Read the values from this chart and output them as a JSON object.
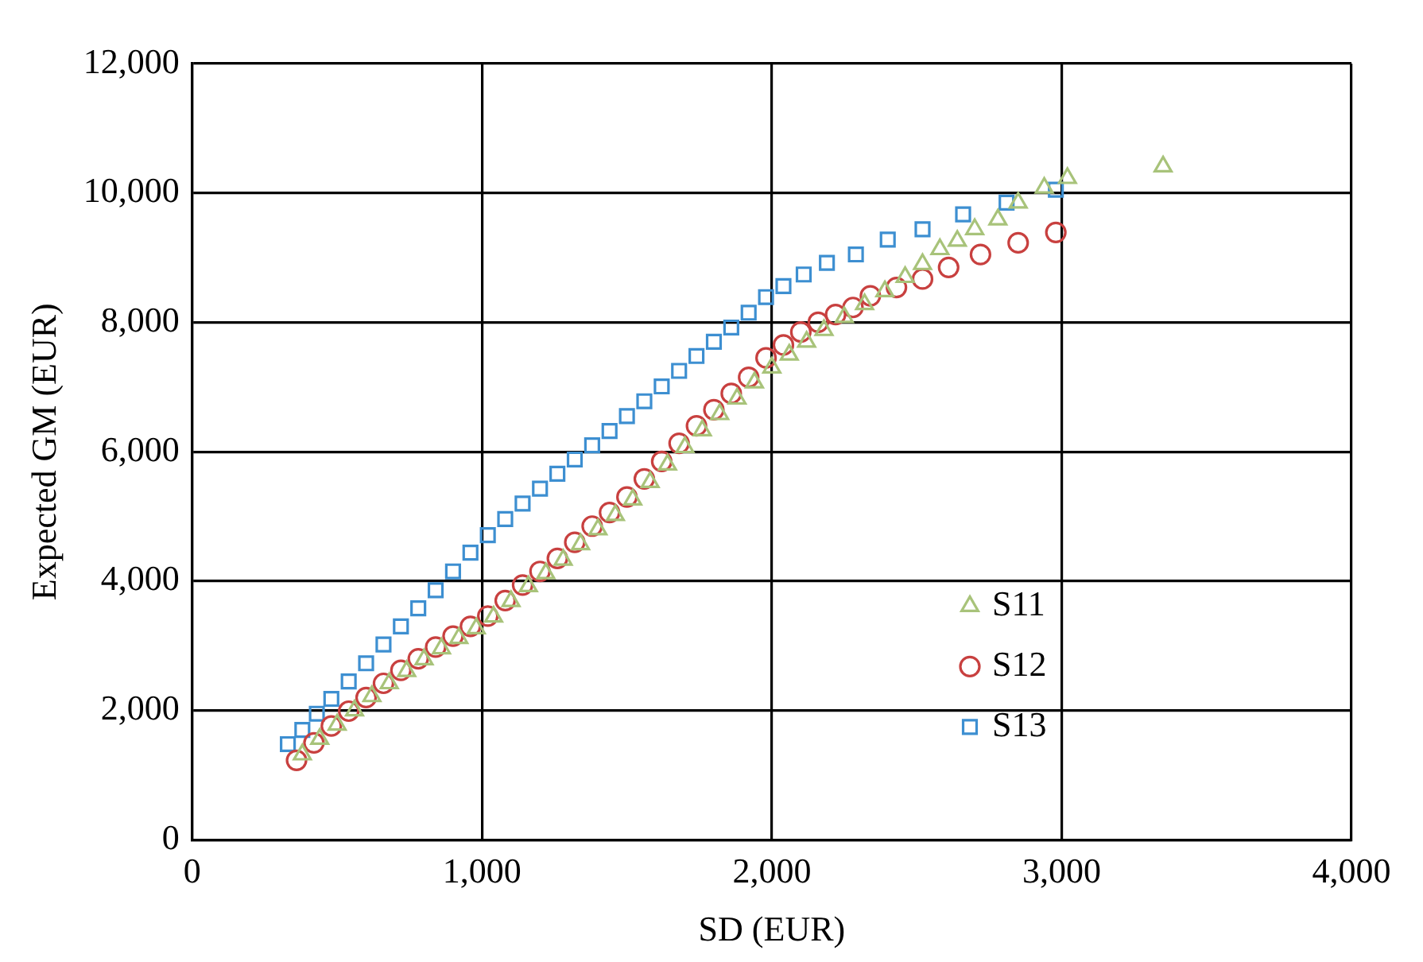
{
  "chart_data": {
    "type": "scatter",
    "xlabel": "SD (EUR)",
    "ylabel": "Expected GM (EUR)",
    "xlim": [
      0,
      4000
    ],
    "xticks": [
      0,
      {
        "value": 1000,
        "label": "1,000"
      },
      {
        "value": 2000,
        "label": "2,000"
      },
      {
        "value": 3000,
        "label": "3,000"
      },
      {
        "value": 4000,
        "label": "4,000"
      }
    ],
    "ylim": [
      0,
      12000
    ],
    "yticks": [
      0,
      {
        "value": 2000,
        "label": "2,000"
      },
      {
        "value": 4000,
        "label": "4,000"
      },
      {
        "value": 6000,
        "label": "6,000"
      },
      {
        "value": 8000,
        "label": "8,000"
      },
      {
        "value": 10000,
        "label": "10,000"
      },
      {
        "value": 12000,
        "label": "12,000"
      }
    ],
    "grid": true,
    "legend": "bottom right",
    "series": [
      {
        "name": "S11",
        "color": "#a8c37a",
        "marker": "triangle",
        "x": [
          380,
          440,
          500,
          560,
          620,
          680,
          740,
          800,
          860,
          920,
          980,
          1040,
          1100,
          1160,
          1220,
          1280,
          1340,
          1400,
          1460,
          1520,
          1580,
          1640,
          1700,
          1760,
          1820,
          1880,
          1940,
          2000,
          2060,
          2120,
          2180,
          2250,
          2320,
          2390,
          2460,
          2520,
          2580,
          2640,
          2700,
          2780,
          2850,
          2940,
          3020,
          3350
        ],
        "values": [
          1320,
          1560,
          1780,
          2000,
          2220,
          2420,
          2610,
          2790,
          2960,
          3120,
          3270,
          3450,
          3690,
          3920,
          4120,
          4330,
          4570,
          4800,
          5020,
          5260,
          5530,
          5800,
          6070,
          6330,
          6580,
          6820,
          7070,
          7300,
          7500,
          7700,
          7880,
          8080,
          8280,
          8480,
          8700,
          8900,
          9130,
          9260,
          9440,
          9590,
          9850,
          10080,
          10230,
          10410
        ]
      },
      {
        "name": "S12",
        "color": "#c8403f",
        "marker": "circle",
        "x": [
          360,
          420,
          480,
          540,
          600,
          660,
          720,
          780,
          840,
          900,
          960,
          1020,
          1080,
          1140,
          1200,
          1260,
          1320,
          1380,
          1440,
          1500,
          1560,
          1620,
          1680,
          1740,
          1800,
          1860,
          1920,
          1980,
          2040,
          2100,
          2160,
          2220,
          2280,
          2340,
          2430,
          2520,
          2610,
          2720,
          2850,
          2980
        ],
        "values": [
          1230,
          1500,
          1760,
          1990,
          2200,
          2420,
          2620,
          2800,
          2980,
          3150,
          3300,
          3460,
          3700,
          3940,
          4150,
          4350,
          4600,
          4850,
          5060,
          5300,
          5580,
          5850,
          6130,
          6400,
          6650,
          6900,
          7150,
          7450,
          7650,
          7850,
          8000,
          8120,
          8230,
          8410,
          8540,
          8670,
          8850,
          9050,
          9230,
          9390
        ]
      },
      {
        "name": "S13",
        "color": "#3d8fd1",
        "marker": "square",
        "x": [
          330,
          380,
          430,
          480,
          540,
          600,
          660,
          720,
          780,
          840,
          900,
          960,
          1020,
          1080,
          1140,
          1200,
          1260,
          1320,
          1380,
          1440,
          1500,
          1560,
          1620,
          1680,
          1740,
          1800,
          1860,
          1920,
          1980,
          2040,
          2110,
          2190,
          2290,
          2400,
          2520,
          2660,
          2810,
          2980
        ],
        "values": [
          1480,
          1700,
          1950,
          2180,
          2450,
          2730,
          3020,
          3300,
          3580,
          3860,
          4150,
          4440,
          4710,
          4960,
          5200,
          5430,
          5660,
          5880,
          6100,
          6320,
          6550,
          6780,
          7010,
          7250,
          7480,
          7700,
          7920,
          8150,
          8390,
          8560,
          8740,
          8920,
          9050,
          9280,
          9440,
          9670,
          9850,
          10050
        ]
      }
    ]
  }
}
